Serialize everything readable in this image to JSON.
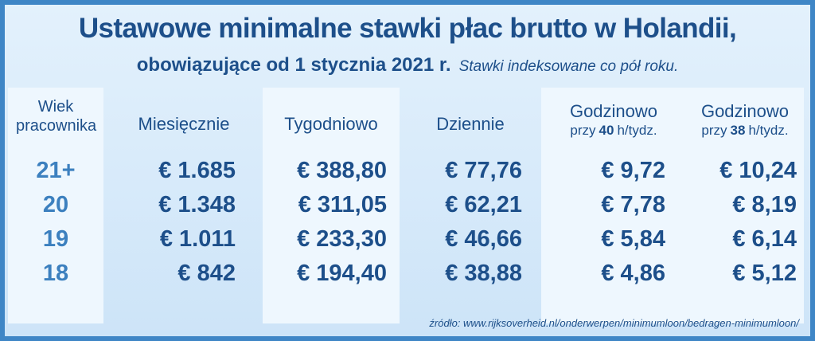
{
  "header": {
    "title": "Ustawowe minimalne stawki płac brutto w Holandii,",
    "subtitle": "obowiązujące od 1 stycznia 2021 r.",
    "note": "Stawki indeksowane co pół roku."
  },
  "table": {
    "columns": [
      {
        "title": "Wiek pracownika"
      },
      {
        "title": "Miesięcznie"
      },
      {
        "title": "Tygodniowo"
      },
      {
        "title": "Dziennie"
      },
      {
        "title": "Godzinowo",
        "sub": [
          "przy",
          "40",
          "h/tydz."
        ]
      },
      {
        "title": "Godzinowo",
        "sub": [
          "przy",
          "38",
          "h/tydz."
        ]
      }
    ],
    "rows": [
      [
        "21+",
        "€ 1.685",
        "€ 388,80",
        "€ 77,76",
        "€ 9,72",
        "€ 10,24"
      ],
      [
        "20",
        "€ 1.348",
        "€ 311,05",
        "€ 62,21",
        "€ 7,78",
        "€ 8,19"
      ],
      [
        "19",
        "€ 1.011",
        "€ 233,30",
        "€ 46,66",
        "€ 5,84",
        "€ 6,14"
      ],
      [
        "18",
        "€ 842",
        "€ 194,40",
        "€ 38,88",
        "€ 4,86",
        "€ 5,12"
      ]
    ]
  },
  "footer": {
    "source": "źródło: www.rijksoverheid.nl/onderwerpen/minimumloon/bedragen-minimumloon/"
  }
}
